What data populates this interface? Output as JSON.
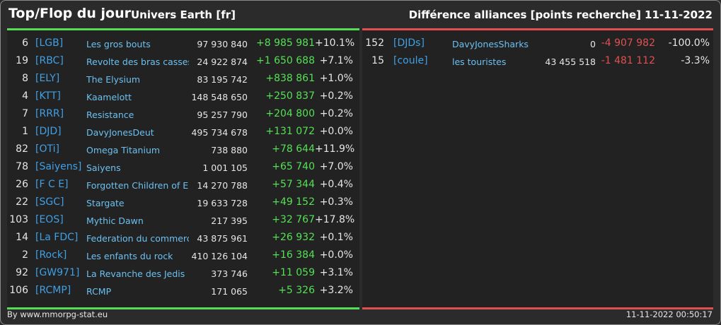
{
  "header": {
    "title": "Top/Flop du jour",
    "universe": "Univers Earth [fr]",
    "subtitle": "Différence alliances [points recherche]",
    "date": "11-11-2022"
  },
  "colors": {
    "positive": "#55e055",
    "negative": "#e05050",
    "tag": "#3fa0e6",
    "name": "#6cc0f0"
  },
  "top": [
    {
      "rank": "6",
      "tag": "[LGB]",
      "name": "Les gros bouts",
      "points": "97 930 840",
      "diff": "+8 985 981",
      "pct": "+10.1%"
    },
    {
      "rank": "19",
      "tag": "[RBC]",
      "name": "Revolte des bras casses",
      "points": "24 922 874",
      "diff": "+1 650 688",
      "pct": "+7.1%"
    },
    {
      "rank": "8",
      "tag": "[ELY]",
      "name": "The Elysium",
      "points": "83 195 742",
      "diff": "+838 861",
      "pct": "+1.0%"
    },
    {
      "rank": "4",
      "tag": "[KTT]",
      "name": "Kaamelott",
      "points": "148 548 650",
      "diff": "+250 837",
      "pct": "+0.2%"
    },
    {
      "rank": "7",
      "tag": "[RRR]",
      "name": "Resistance",
      "points": "95 257 790",
      "diff": "+204 800",
      "pct": "+0.2%"
    },
    {
      "rank": "1",
      "tag": "[DJD]",
      "name": "DavyJonesDeut",
      "points": "495 734 678",
      "diff": "+131 072",
      "pct": "+0.0%"
    },
    {
      "rank": "82",
      "tag": "[OTi]",
      "name": "Omega Titanium",
      "points": "738 880",
      "diff": "+78 644",
      "pct": "+11.9%"
    },
    {
      "rank": "78",
      "tag": "[Saiyens]",
      "name": "Saiyens",
      "points": "1 001 105",
      "diff": "+65 740",
      "pct": "+7.0%"
    },
    {
      "rank": "26",
      "tag": "[F C E]",
      "name": "Forgotten Children of Enki",
      "points": "14 270 788",
      "diff": "+57 344",
      "pct": "+0.4%"
    },
    {
      "rank": "22",
      "tag": "[SGC]",
      "name": "Stargate",
      "points": "19 633 728",
      "diff": "+49 152",
      "pct": "+0.3%"
    },
    {
      "rank": "103",
      "tag": "[EOS]",
      "name": "Mythic Dawn",
      "points": "217 395",
      "diff": "+32 767",
      "pct": "+17.8%"
    },
    {
      "rank": "14",
      "tag": "[La FDC]",
      "name": "Federation du commerce",
      "points": "43 875 961",
      "diff": "+26 932",
      "pct": "+0.1%"
    },
    {
      "rank": "2",
      "tag": "[Rock]",
      "name": "Les enfants du rock",
      "points": "410 126 104",
      "diff": "+16 384",
      "pct": "+0.0%"
    },
    {
      "rank": "92",
      "tag": "[GW971]",
      "name": "La Revanche des Jedis",
      "points": "373 746",
      "diff": "+11 059",
      "pct": "+3.1%"
    },
    {
      "rank": "106",
      "tag": "[RCMP]",
      "name": "RCMP",
      "points": "171 065",
      "diff": "+5 326",
      "pct": "+3.2%"
    }
  ],
  "flop": [
    {
      "rank": "152",
      "tag": "[DJDs]",
      "name": "DavyJonesSharks",
      "points": "0",
      "diff": "-4 907 982",
      "pct": "-100.0%"
    },
    {
      "rank": "15",
      "tag": "[coule]",
      "name": "les touristes",
      "points": "43 455 518",
      "diff": "-1 481 112",
      "pct": "-3.3%"
    }
  ],
  "footer": {
    "source": "By www.mmorpg-stat.eu",
    "timestamp": "11-11-2022 00:50:17"
  }
}
